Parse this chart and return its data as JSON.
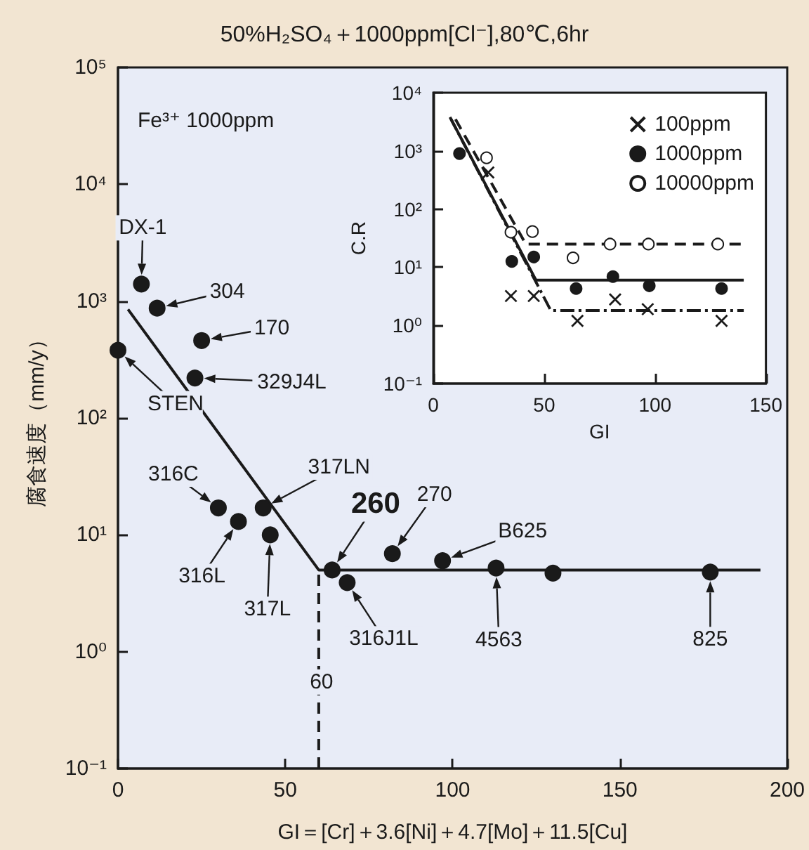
{
  "chart_data": [
    {
      "type": "scatter",
      "title": "50%H₂SO₄＋1000ppm[Cl⁻],80℃,6hr",
      "xlabel": "GI＝[Cr]＋3.6[Ni]＋4.7[Mo]＋11.5[Cu]",
      "ylabel": "腐食速度（mm/y）",
      "log": "y",
      "grid": false,
      "legend": false,
      "xlim": [
        0,
        200
      ],
      "xticks": [
        0,
        50,
        100,
        150,
        200
      ],
      "ylim": [
        0.1,
        100000
      ],
      "yticks": [
        {
          "value": 0.1,
          "label": "10⁻¹"
        },
        {
          "value": 1,
          "label": "10⁰"
        },
        {
          "value": 10,
          "label": "10¹"
        },
        {
          "value": 100,
          "label": "10²"
        },
        {
          "value": 1000,
          "label": "10³"
        },
        {
          "value": 10000,
          "label": "10⁴"
        },
        {
          "value": 100000,
          "label": "10⁵"
        }
      ],
      "series": [
        {
          "type": "scatter",
          "marker": "circle",
          "color": "#1a1a1a",
          "x": [
            0,
            7,
            11.7,
            25,
            23,
            30,
            36,
            43.4,
            45.5,
            64,
            68.5,
            82,
            97,
            113,
            130,
            177
          ],
          "values": [
            380,
            1400,
            870,
            460,
            220,
            17,
            13,
            17,
            10,
            5,
            3.9,
            6.9,
            6,
            5.2,
            4.7,
            4.8
          ]
        },
        {
          "type": "line",
          "color": "#1a1a1a",
          "line_style": "solid",
          "x": [
            3,
            60,
            192
          ],
          "values": [
            850,
            5,
            5
          ]
        },
        {
          "type": "line",
          "color": "#1a1a1a",
          "line_style": "dashed",
          "x": [
            60,
            60
          ],
          "values": [
            0.1,
            5
          ]
        }
      ],
      "annotations": [
        "Fe³⁺ 1000ppm",
        {
          "text": "STEN",
          "x": 0,
          "y": 380
        },
        {
          "text": "DX-1",
          "x": 7,
          "y": 1400
        },
        {
          "text": "304",
          "x": 11.7,
          "y": 870
        },
        {
          "text": "170",
          "x": 25,
          "y": 460
        },
        {
          "text": "329J4L",
          "x": 23,
          "y": 220
        },
        {
          "text": "316C",
          "x": 30,
          "y": 17
        },
        {
          "text": "316L",
          "x": 36,
          "y": 13
        },
        {
          "text": "317LN",
          "x": 43.4,
          "y": 17
        },
        {
          "text": "317L",
          "x": 45.5,
          "y": 10
        },
        {
          "text": "260",
          "x": 64,
          "y": 5
        },
        {
          "text": "316J1L",
          "x": 68.5,
          "y": 3.9
        },
        {
          "text": "270",
          "x": 82,
          "y": 6.9
        },
        {
          "text": "B625",
          "x": 97,
          "y": 6
        },
        {
          "text": "4563",
          "x": 113,
          "y": 5.2
        },
        {
          "text": "825",
          "x": 177,
          "y": 4.8
        },
        {
          "text": "60",
          "x": 60,
          "y": 0.55
        }
      ]
    },
    {
      "type": "scatter",
      "xlabel": "GI",
      "ylabel": "C.R",
      "log": "y",
      "grid": false,
      "legend": "top right",
      "xlim": [
        0,
        150
      ],
      "xticks": [
        0,
        50,
        100,
        150
      ],
      "ylim": [
        0.1,
        10000
      ],
      "yticks": [
        {
          "value": 0.1,
          "label": "10⁻¹"
        },
        {
          "value": 1,
          "label": "10⁰"
        },
        {
          "value": 10,
          "label": "10¹"
        },
        {
          "value": 100,
          "label": "10²"
        },
        {
          "value": 1000,
          "label": "10³"
        },
        {
          "value": 10000,
          "label": "10⁴"
        }
      ],
      "series": [
        {
          "name": "100ppm",
          "type": "scatter",
          "marker": "cross",
          "color": "#1a1a1a",
          "x": [
            24.8,
            35,
            45.3,
            65,
            82,
            96.7,
            130
          ],
          "values": [
            425,
            3.2,
            3.2,
            1.2,
            2.8,
            1.9,
            1.2
          ]
        },
        {
          "name": "1000ppm",
          "type": "scatter",
          "marker": "circle",
          "color": "#1a1a1a",
          "x": [
            11.8,
            35.4,
            45.3,
            64.4,
            81,
            97.4,
            130
          ],
          "values": [
            900,
            12.6,
            15,
            4.3,
            6.9,
            4.8,
            4.3
          ]
        },
        {
          "name": "10000ppm",
          "type": "scatter",
          "marker": "circle",
          "color": "#ffffff",
          "x": [
            24,
            35,
            44.7,
            63,
            79.7,
            97,
            128.3
          ],
          "values": [
            760,
            40,
            41,
            14.5,
            25,
            25,
            25
          ]
        },
        {
          "type": "line",
          "color": "#1a1a1a",
          "line_style": "dashdot",
          "x": [
            7.5,
            53,
            140
          ],
          "values": [
            3800,
            1.8,
            1.8
          ]
        },
        {
          "type": "line",
          "color": "#1a1a1a",
          "line_style": "solid",
          "x": [
            8,
            46.3,
            140
          ],
          "values": [
            3500,
            6,
            6
          ]
        },
        {
          "type": "line",
          "color": "#1a1a1a",
          "line_style": "dashed",
          "x": [
            10,
            41.7,
            140
          ],
          "values": [
            3500,
            25,
            25
          ]
        }
      ]
    }
  ]
}
